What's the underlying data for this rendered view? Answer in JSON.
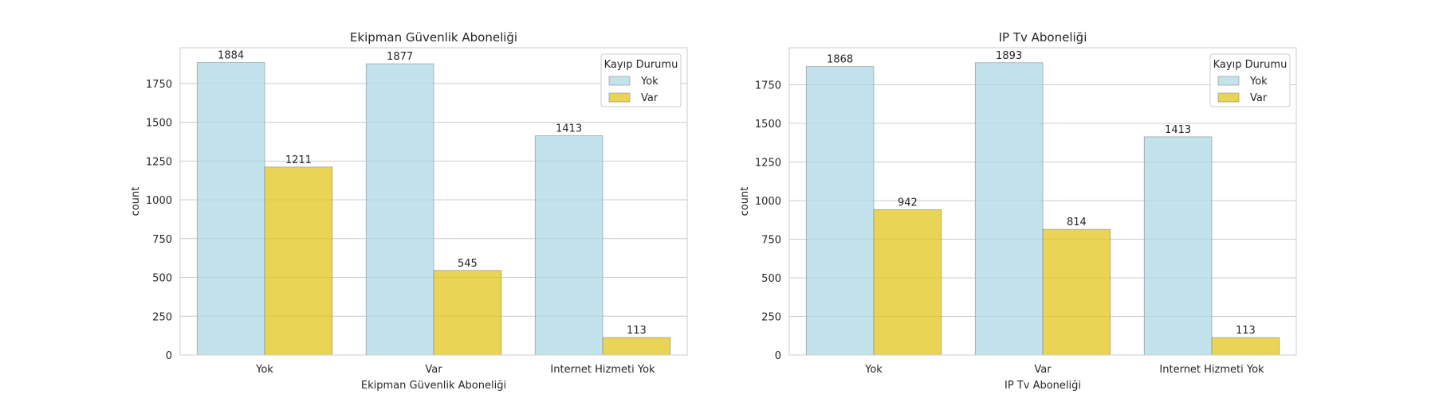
{
  "chart_data": [
    {
      "type": "bar",
      "title": "Ekipman Güvenlik Aboneliği",
      "xlabel": "Ekipman Güvenlik Aboneliği",
      "ylabel": "count",
      "categories": [
        "Yok",
        "Var",
        "Internet Hizmeti Yok"
      ],
      "series": [
        {
          "name": "Yok",
          "values": [
            1884,
            1877,
            1413
          ],
          "color": "#add8e6"
        },
        {
          "name": "Var",
          "values": [
            1211,
            545,
            113
          ],
          "color": "#e3c51c"
        }
      ],
      "ylim": [
        0,
        1980
      ],
      "yticks": [
        0,
        250,
        500,
        750,
        1000,
        1250,
        1500,
        1750
      ],
      "grid": true,
      "legend": {
        "title": "Kayıp Durumu",
        "placement": "top-right"
      }
    },
    {
      "type": "bar",
      "title": "IP Tv Aboneliği",
      "xlabel": "IP Tv Aboneliği",
      "ylabel": "count",
      "categories": [
        "Yok",
        "Var",
        "Internet Hizmeti Yok"
      ],
      "series": [
        {
          "name": "Yok",
          "values": [
            1868,
            1893,
            1413
          ],
          "color": "#add8e6"
        },
        {
          "name": "Var",
          "values": [
            942,
            814,
            113
          ],
          "color": "#e3c51c"
        }
      ],
      "ylim": [
        0,
        1990
      ],
      "yticks": [
        0,
        250,
        500,
        750,
        1000,
        1250,
        1500,
        1750
      ],
      "grid": true,
      "legend": {
        "title": "Kayıp Durumu",
        "placement": "top-right"
      }
    }
  ]
}
